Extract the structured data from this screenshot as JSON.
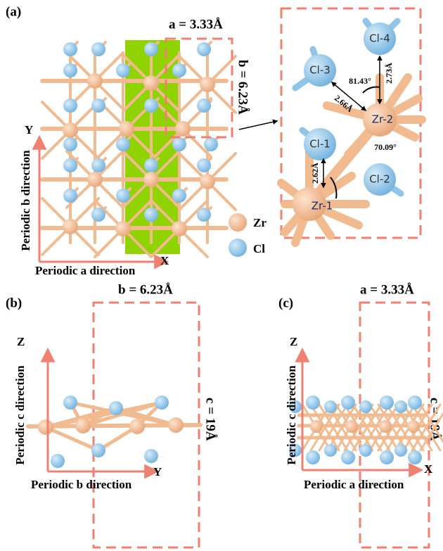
{
  "panel_a": {
    "label": "(a)",
    "lattice_a": "a = 3.33Å",
    "lattice_b": "b = 6.23Å",
    "axis_y": "Y",
    "axis_x": "X",
    "axis_y_title": "Periodic b direction",
    "axis_x_title": "Periodic a direction",
    "legend": [
      "Zr",
      "Cl"
    ],
    "inset": {
      "atoms": [
        "Cl-1",
        "Cl-2",
        "Cl-3",
        "Cl-4",
        "Zr-1",
        "Zr-2"
      ],
      "annotations": [
        "81.43°",
        "2.66Å",
        "2.73Å",
        "70.09°",
        "2.62Å"
      ]
    }
  },
  "panel_b": {
    "label": "(b)",
    "lattice_b": "b = 6.23Å",
    "lattice_c": "c = 19Å",
    "axis_z": "Z",
    "axis_y": "Y",
    "axis_z_title": "Periodic c direction",
    "axis_y_title": "Periodic b direction"
  },
  "panel_c": {
    "label": "(c)",
    "lattice_a": "a = 3.33Å",
    "lattice_c": "c = 19Å",
    "axis_z": "Z",
    "axis_x": "X",
    "axis_z_title": "Periodic c direction",
    "axis_x_title": "Periodic a direction"
  }
}
